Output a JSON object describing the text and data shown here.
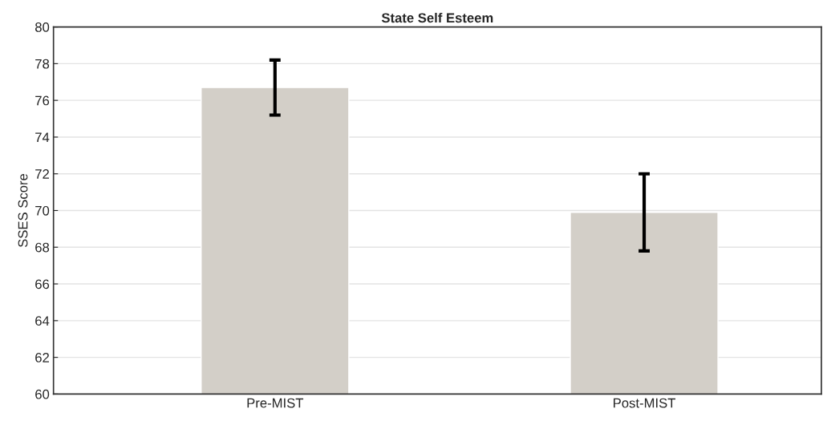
{
  "chart_data": {
    "type": "bar",
    "title": "State Self Esteem",
    "ylabel": "SSES Score",
    "categories": [
      "Pre-MIST",
      "Post-MIST"
    ],
    "values": [
      76.7,
      69.9
    ],
    "errors": [
      1.5,
      2.1
    ],
    "color": "#d3cfc8",
    "ylim": [
      60,
      80
    ],
    "yticks": [
      60,
      62,
      64,
      66,
      68,
      70,
      72,
      74,
      76,
      78,
      80
    ],
    "grid": "y"
  }
}
